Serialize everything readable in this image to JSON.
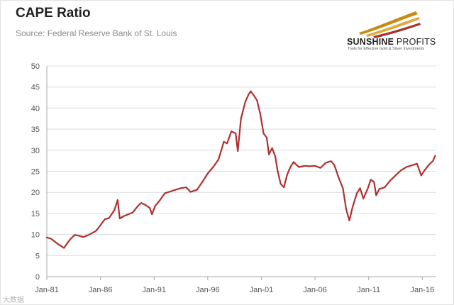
{
  "title": "CAPE Ratio",
  "subtitle": "Source: Federal Reserve Bank of St. Louis",
  "logo": {
    "name_bold": "SUNSHINE",
    "name_light": "PROFITS",
    "tagline": "Tools for Effective Gold & Silver Investments"
  },
  "watermark": "大数据",
  "colors": {
    "line": "#b03030",
    "grid": "#dcdcdc",
    "axis": "#a8a8a8",
    "logo_accent": "#d4961e"
  },
  "chart_data": {
    "type": "line",
    "title": "CAPE Ratio",
    "xlabel": "",
    "ylabel": "",
    "xlim": [
      1981.0,
      2017.3
    ],
    "ylim": [
      0,
      50
    ],
    "yticks": [
      0,
      5,
      10,
      15,
      20,
      25,
      30,
      35,
      40,
      45,
      50
    ],
    "xticks": [
      {
        "label": "Jan-81",
        "x": 1981
      },
      {
        "label": "Jan-86",
        "x": 1986
      },
      {
        "label": "Jan-91",
        "x": 1991
      },
      {
        "label": "Jan-96",
        "x": 1996
      },
      {
        "label": "Jan-01",
        "x": 2001
      },
      {
        "label": "Jan-06",
        "x": 2006
      },
      {
        "label": "Jan-11",
        "x": 2011
      },
      {
        "label": "Jan-16",
        "x": 2016
      }
    ],
    "grid": "horizontal",
    "series": [
      {
        "values": [
          [
            1981.0,
            9.3
          ],
          [
            1981.4,
            9.0
          ],
          [
            1981.7,
            8.4
          ],
          [
            1982.0,
            7.8
          ],
          [
            1982.3,
            7.3
          ],
          [
            1982.6,
            6.8
          ],
          [
            1982.9,
            7.9
          ],
          [
            1983.2,
            8.9
          ],
          [
            1983.6,
            9.9
          ],
          [
            1984.0,
            9.7
          ],
          [
            1984.4,
            9.4
          ],
          [
            1984.8,
            9.8
          ],
          [
            1985.2,
            10.3
          ],
          [
            1985.6,
            10.9
          ],
          [
            1986.0,
            12.2
          ],
          [
            1986.4,
            13.6
          ],
          [
            1986.8,
            13.9
          ],
          [
            1987.3,
            15.8
          ],
          [
            1987.6,
            18.2
          ],
          [
            1987.8,
            13.8
          ],
          [
            1988.2,
            14.4
          ],
          [
            1988.6,
            14.8
          ],
          [
            1989.0,
            15.2
          ],
          [
            1989.5,
            16.8
          ],
          [
            1989.8,
            17.5
          ],
          [
            1990.2,
            17.0
          ],
          [
            1990.6,
            16.3
          ],
          [
            1990.8,
            14.8
          ],
          [
            1991.1,
            16.8
          ],
          [
            1991.5,
            18.0
          ],
          [
            1992.0,
            19.8
          ],
          [
            1992.5,
            20.2
          ],
          [
            1993.0,
            20.6
          ],
          [
            1993.5,
            21.0
          ],
          [
            1994.0,
            21.2
          ],
          [
            1994.4,
            20.1
          ],
          [
            1995.0,
            20.6
          ],
          [
            1995.5,
            22.5
          ],
          [
            1996.0,
            24.5
          ],
          [
            1996.5,
            26.0
          ],
          [
            1997.0,
            27.8
          ],
          [
            1997.5,
            32.0
          ],
          [
            1997.8,
            31.6
          ],
          [
            1998.2,
            34.5
          ],
          [
            1998.6,
            34.0
          ],
          [
            1998.8,
            29.8
          ],
          [
            1999.1,
            37.5
          ],
          [
            1999.5,
            41.5
          ],
          [
            1999.8,
            43.2
          ],
          [
            2000.0,
            44.0
          ],
          [
            2000.3,
            43.0
          ],
          [
            2000.6,
            41.8
          ],
          [
            2000.9,
            38.5
          ],
          [
            2001.2,
            34.0
          ],
          [
            2001.5,
            33.0
          ],
          [
            2001.7,
            29.0
          ],
          [
            2002.0,
            30.5
          ],
          [
            2002.3,
            28.5
          ],
          [
            2002.5,
            25.2
          ],
          [
            2002.8,
            22.0
          ],
          [
            2003.1,
            21.2
          ],
          [
            2003.4,
            24.2
          ],
          [
            2003.7,
            26.0
          ],
          [
            2004.0,
            27.2
          ],
          [
            2004.5,
            26.0
          ],
          [
            2005.0,
            26.3
          ],
          [
            2005.5,
            26.2
          ],
          [
            2006.0,
            26.3
          ],
          [
            2006.5,
            25.8
          ],
          [
            2007.0,
            27.0
          ],
          [
            2007.5,
            27.4
          ],
          [
            2007.8,
            26.5
          ],
          [
            2008.2,
            23.5
          ],
          [
            2008.6,
            21.0
          ],
          [
            2008.9,
            16.0
          ],
          [
            2009.2,
            13.3
          ],
          [
            2009.5,
            16.5
          ],
          [
            2009.9,
            19.8
          ],
          [
            2010.2,
            21.0
          ],
          [
            2010.5,
            18.5
          ],
          [
            2010.9,
            20.8
          ],
          [
            2011.2,
            23.0
          ],
          [
            2011.5,
            22.5
          ],
          [
            2011.7,
            19.3
          ],
          [
            2012.0,
            20.8
          ],
          [
            2012.5,
            21.2
          ],
          [
            2013.0,
            22.8
          ],
          [
            2013.5,
            24.0
          ],
          [
            2014.0,
            25.2
          ],
          [
            2014.5,
            26.0
          ],
          [
            2015.0,
            26.4
          ],
          [
            2015.5,
            26.8
          ],
          [
            2015.9,
            24.0
          ],
          [
            2016.2,
            25.2
          ],
          [
            2016.6,
            26.5
          ],
          [
            2017.0,
            27.5
          ],
          [
            2017.2,
            28.7
          ]
        ]
      }
    ]
  }
}
